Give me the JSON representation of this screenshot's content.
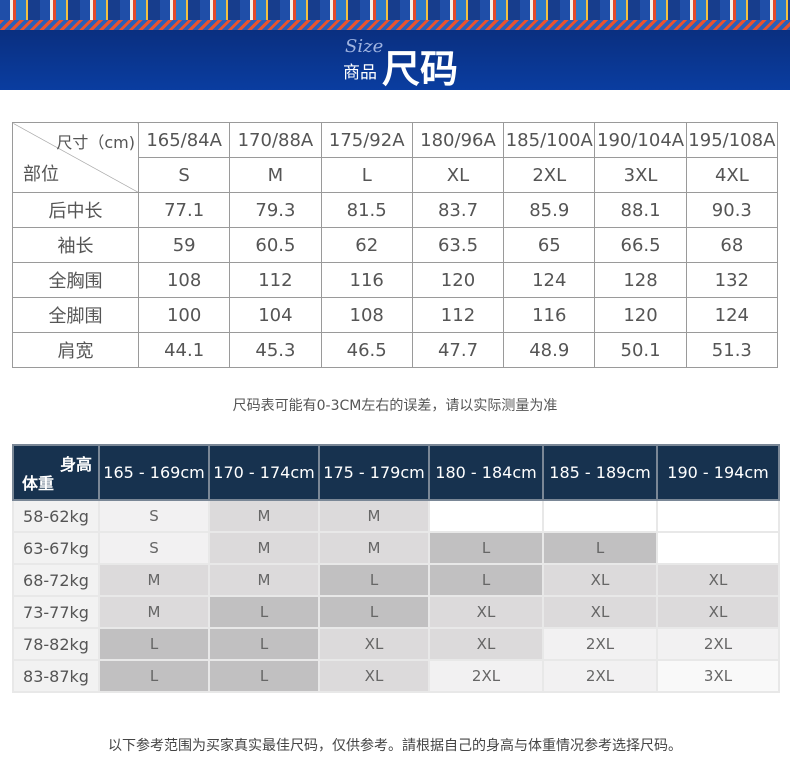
{
  "banner": {
    "size_script": "Size",
    "sub": "商品",
    "title": "尺码",
    "colors": {
      "banner": "#0a3da0"
    }
  },
  "measure": {
    "corner_top": "尺寸（cm)",
    "corner_bottom": "部位",
    "codes": [
      "165/84A",
      "170/88A",
      "175/92A",
      "180/96A",
      "185/100A",
      "190/104A",
      "195/108A"
    ],
    "sizes": [
      "S",
      "M",
      "L",
      "XL",
      "2XL",
      "3XL",
      "4XL"
    ],
    "rows": [
      {
        "label": "后中长",
        "values": [
          "77.1",
          "79.3",
          "81.5",
          "83.7",
          "85.9",
          "88.1",
          "90.3"
        ]
      },
      {
        "label": "袖长",
        "values": [
          "59",
          "60.5",
          "62",
          "63.5",
          "65",
          "66.5",
          "68"
        ]
      },
      {
        "label": "全胸围",
        "values": [
          "108",
          "112",
          "116",
          "120",
          "124",
          "128",
          "132"
        ]
      },
      {
        "label": "全脚围",
        "values": [
          "100",
          "104",
          "108",
          "112",
          "116",
          "120",
          "124"
        ]
      },
      {
        "label": "肩宽",
        "values": [
          "44.1",
          "45.3",
          "46.5",
          "47.7",
          "48.9",
          "50.1",
          "51.3"
        ]
      }
    ],
    "note": "尺码表可能有0-3CM左右的误差，请以实际测量为准"
  },
  "recommend": {
    "corner_top": "身高",
    "corner_bottom": "体重",
    "heights": [
      "165 - 169cm",
      "170 - 174cm",
      "175 - 179cm",
      "180 - 184cm",
      "185 - 189cm",
      "190 - 194cm"
    ],
    "rows": [
      {
        "label": "58-62kg",
        "values": [
          "S",
          "M",
          "M",
          "",
          "",
          ""
        ]
      },
      {
        "label": "63-67kg",
        "values": [
          "S",
          "M",
          "M",
          "L",
          "L",
          ""
        ]
      },
      {
        "label": "68-72kg",
        "values": [
          "M",
          "M",
          "L",
          "L",
          "XL",
          "XL"
        ]
      },
      {
        "label": "73-77kg",
        "values": [
          "M",
          "L",
          "L",
          "XL",
          "XL",
          "XL"
        ]
      },
      {
        "label": "78-82kg",
        "values": [
          "L",
          "L",
          "XL",
          "XL",
          "2XL",
          "2XL"
        ]
      },
      {
        "label": "83-87kg",
        "values": [
          "L",
          "L",
          "XL",
          "2XL",
          "2XL",
          "3XL"
        ]
      }
    ],
    "cell_colors": {
      "S": "#f2f1f2",
      "M": "#dcdadb",
      "L": "#c1c0c1",
      "XL": "#dcdadb",
      "2XL": "#f2f1f2",
      "3XL": "#f9f9f9",
      "": "#ffffff"
    },
    "header_color": "#17324f",
    "note": "以下参考范围为买家真实最佳尺码，仅供参考。請根据自己的身高与体重情况参考选择尺码。"
  }
}
